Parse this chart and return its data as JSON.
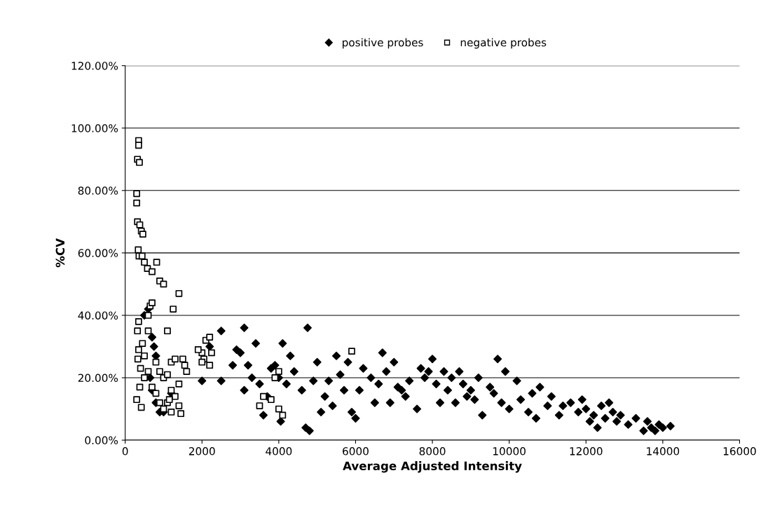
{
  "chart_data": {
    "type": "scatter",
    "xlabel": "Average Adjusted Intensity",
    "ylabel": "%CV",
    "xlim": [
      0,
      16000
    ],
    "xticks": [
      0,
      2000,
      4000,
      6000,
      8000,
      10000,
      12000,
      14000,
      16000
    ],
    "ylim": [
      0,
      120
    ],
    "yticks": [
      {
        "value": 0,
        "label": "0.00%"
      },
      {
        "value": 20,
        "label": "20.00%"
      },
      {
        "value": 40,
        "label": "40.00%"
      },
      {
        "value": 60,
        "label": "60.00%"
      },
      {
        "value": 80,
        "label": "80.00%"
      },
      {
        "value": 100,
        "label": "100.00%"
      },
      {
        "value": 120,
        "label": "120.00%"
      }
    ],
    "grid": "y",
    "legend": "top",
    "series": [
      {
        "name": "positive probes",
        "color": "#000000",
        "marker": "diamond",
        "x": [
          500,
          600,
          700,
          800,
          650,
          700,
          900,
          1000,
          800,
          750,
          1200,
          2000,
          2200,
          2500,
          2500,
          2800,
          2900,
          3000,
          3100,
          3100,
          3200,
          3300,
          3400,
          3500,
          3600,
          3700,
          3800,
          3900,
          4000,
          4050,
          4100,
          4200,
          4300,
          4400,
          4600,
          4700,
          4750,
          4800,
          4900,
          5000,
          5100,
          5200,
          5300,
          5400,
          5500,
          5600,
          5700,
          5800,
          5900,
          6000,
          6100,
          6200,
          6400,
          6500,
          6600,
          6700,
          6800,
          6900,
          7000,
          7100,
          7200,
          7300,
          7400,
          7600,
          7700,
          7800,
          7900,
          8000,
          8100,
          8200,
          8300,
          8400,
          8500,
          8600,
          8700,
          8800,
          8900,
          9000,
          9100,
          9200,
          9300,
          9500,
          9600,
          9700,
          9800,
          9900,
          10000,
          10200,
          10300,
          10500,
          10600,
          10700,
          10800,
          11000,
          11100,
          11300,
          11400,
          11600,
          11800,
          11900,
          12000,
          12100,
          12200,
          12300,
          12400,
          12500,
          12600,
          12700,
          12800,
          12900,
          13100,
          13300,
          13500,
          13600,
          13700,
          13800,
          13900,
          14000,
          14200
        ],
        "values": [
          40,
          42,
          33,
          27,
          20,
          16,
          9,
          9,
          12,
          30,
          15,
          19,
          30,
          35,
          19,
          24,
          29,
          28,
          36,
          16,
          24,
          20,
          31,
          18,
          8,
          14,
          23,
          24,
          20,
          6,
          31,
          18,
          27,
          22,
          16,
          4,
          36,
          3,
          19,
          25,
          9,
          14,
          19,
          11,
          27,
          21,
          16,
          25,
          9,
          7,
          16,
          23,
          20,
          12,
          18,
          28,
          22,
          12,
          25,
          17,
          16,
          14,
          19,
          10,
          23,
          20,
          22,
          26,
          18,
          12,
          22,
          16,
          20,
          12,
          22,
          18,
          14,
          16,
          13,
          20,
          8,
          17,
          15,
          26,
          12,
          22,
          10,
          19,
          13,
          9,
          15,
          7,
          17,
          11,
          14,
          8,
          11,
          12,
          9,
          13,
          10,
          6,
          8,
          4,
          11,
          7,
          12,
          9,
          6,
          8,
          5,
          7,
          3,
          6,
          4,
          3,
          5,
          4,
          4.5
        ]
      },
      {
        "name": "negative probes",
        "color": "#000000",
        "marker": "square",
        "x": [
          350,
          350,
          320,
          370,
          300,
          300,
          320,
          380,
          420,
          460,
          340,
          360,
          440,
          500,
          580,
          700,
          900,
          1000,
          820,
          1400,
          1250,
          1100,
          320,
          350,
          600,
          650,
          700,
          330,
          350,
          450,
          500,
          400,
          380,
          300,
          420,
          600,
          800,
          900,
          1000,
          1100,
          1200,
          1300,
          1500,
          1550,
          1600,
          1400,
          1300,
          1200,
          1100,
          1000,
          900,
          1400,
          1450,
          2000,
          2050,
          2100,
          2200,
          2250,
          1900,
          2000,
          2200,
          500,
          700,
          800,
          600,
          3500,
          3600,
          3800,
          4000,
          4100,
          3900,
          4000,
          5900,
          1200,
          1150
        ],
        "values": [
          96,
          94.5,
          90,
          89,
          79,
          76,
          70,
          69,
          67,
          66,
          61,
          59,
          59,
          57,
          55,
          54,
          51,
          50,
          57,
          47,
          42,
          35,
          35,
          38,
          40,
          43,
          44,
          26,
          29,
          31,
          27,
          23,
          17,
          13,
          10.5,
          22,
          25,
          22,
          20,
          21,
          25,
          26,
          26,
          24,
          22,
          18,
          14,
          16,
          12,
          10,
          12,
          11,
          8.5,
          28,
          26,
          32,
          33,
          28,
          29,
          25,
          24,
          20,
          17,
          15,
          35,
          11,
          14,
          13,
          10,
          8,
          20,
          22,
          28.5,
          9,
          13
        ]
      }
    ]
  }
}
